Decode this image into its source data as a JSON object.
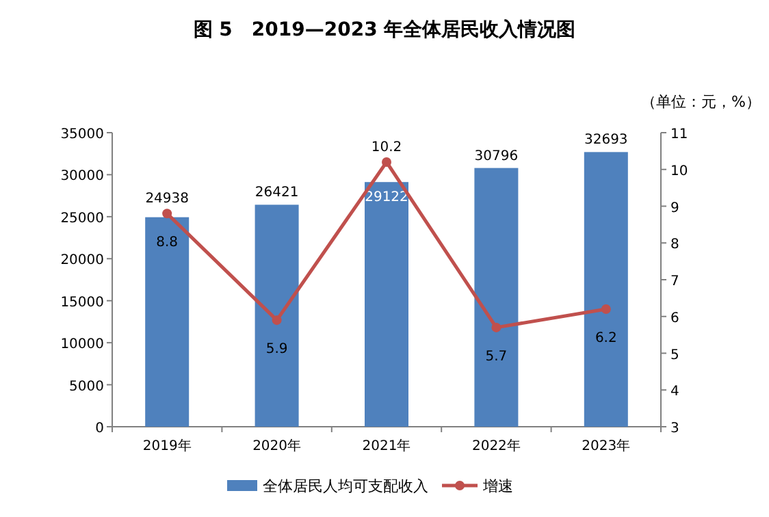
{
  "chart_data": {
    "type": "bar",
    "title": "图 5　2019—2023 年全体居民收入情况图",
    "annotations": [
      "（单位：元，%）"
    ],
    "categories": [
      "2019年",
      "2020年",
      "2021年",
      "2022年",
      "2023年"
    ],
    "series": [
      {
        "name": "全体居民人均可支配收入",
        "color": "#4f81bd",
        "values": [
          24938,
          26421,
          29122,
          30796,
          32693
        ]
      },
      {
        "name": "增速",
        "type": "line",
        "axis": "y2",
        "color": "#c0504d",
        "marker": "circle",
        "values": [
          8.8,
          5.9,
          10.2,
          5.7,
          6.2
        ]
      }
    ],
    "ylim": [
      0,
      35000
    ],
    "yticks": [
      0,
      5000,
      10000,
      15000,
      20000,
      25000,
      30000,
      35000
    ],
    "y2lim": [
      3,
      11
    ],
    "y2ticks": [
      3,
      4,
      5,
      6,
      7,
      8,
      9,
      10,
      11
    ],
    "data_labels": true,
    "legend": "bottom",
    "grid": false
  }
}
